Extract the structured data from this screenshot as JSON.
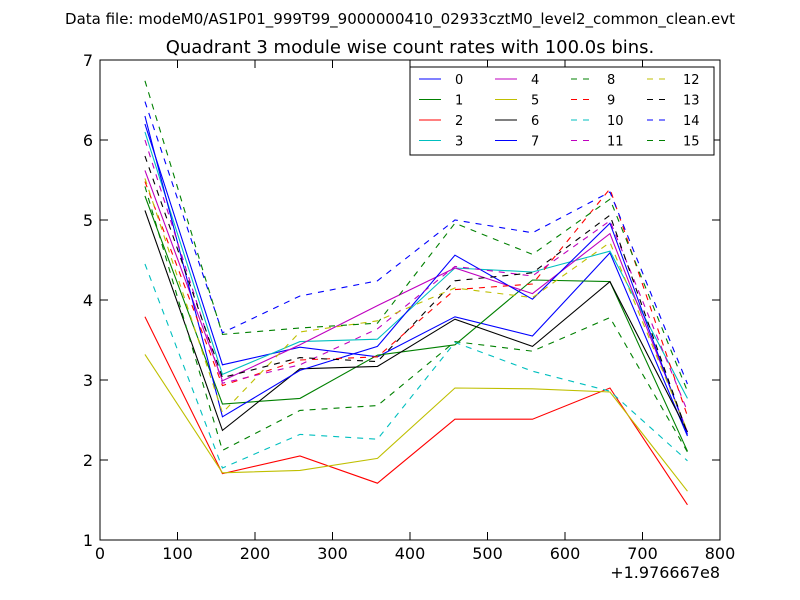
{
  "figure": {
    "suptitle": "Data file: modeM0/AS1P01_999T99_9000000410_02933cztM0_level2_common_clean.evt",
    "title": "Quadrant 3 module wise count rates with 100.0s bins.",
    "x_offset_label": "+1.976667e8"
  },
  "chart_data": {
    "type": "line",
    "title": "Quadrant 3 module wise count rates with 100.0s bins.",
    "xlabel": "",
    "ylabel": "",
    "xlim": [
      0,
      800
    ],
    "ylim": [
      1,
      7
    ],
    "x_ticks": [
      0,
      100,
      200,
      300,
      400,
      500,
      600,
      700,
      800
    ],
    "x_tick_labels": [
      "0",
      "100",
      "200",
      "300",
      "400",
      "500",
      "600",
      "700",
      "800"
    ],
    "y_ticks": [
      1,
      2,
      3,
      4,
      5,
      6,
      7
    ],
    "y_tick_labels": [
      "1",
      "2",
      "3",
      "4",
      "5",
      "6",
      "7"
    ],
    "x_offset": "+1.976667e8",
    "grid": false,
    "legend_position": "top-right",
    "legend_columns": 4,
    "x": [
      58,
      158,
      258,
      358,
      458,
      558,
      658,
      758
    ],
    "series": [
      {
        "name": "0",
        "color": "#0000ff",
        "style": "solid",
        "values": [
          6.2,
          3.19,
          3.41,
          3.29,
          3.79,
          3.55,
          4.59,
          2.3
        ]
      },
      {
        "name": "1",
        "color": "#008000",
        "style": "solid",
        "values": [
          5.3,
          2.7,
          2.77,
          3.31,
          3.44,
          4.25,
          4.23,
          2.11
        ]
      },
      {
        "name": "2",
        "color": "#ff0000",
        "style": "solid",
        "values": [
          3.79,
          1.83,
          2.05,
          1.71,
          2.51,
          2.51,
          2.9,
          1.44
        ]
      },
      {
        "name": "3",
        "color": "#00bfbf",
        "style": "solid",
        "values": [
          6.1,
          3.07,
          3.48,
          3.51,
          4.4,
          4.35,
          4.61,
          2.77
        ]
      },
      {
        "name": "4",
        "color": "#bf00bf",
        "style": "solid",
        "values": [
          5.62,
          2.99,
          3.44,
          3.93,
          4.4,
          4.08,
          4.83,
          2.35
        ]
      },
      {
        "name": "5",
        "color": "#bfbf00",
        "style": "solid",
        "values": [
          3.32,
          1.84,
          1.87,
          2.02,
          2.9,
          2.89,
          2.85,
          1.61
        ]
      },
      {
        "name": "6",
        "color": "#000000",
        "style": "solid",
        "values": [
          5.12,
          2.37,
          3.14,
          3.17,
          3.76,
          3.42,
          4.23,
          2.35
        ]
      },
      {
        "name": "7",
        "color": "#0000ff",
        "style": "solid",
        "values": [
          6.3,
          2.54,
          3.12,
          3.42,
          4.56,
          4.01,
          4.96,
          2.32
        ]
      },
      {
        "name": "8",
        "color": "#008000",
        "style": "dashed",
        "values": [
          5.42,
          2.12,
          2.62,
          2.68,
          3.48,
          3.36,
          3.78,
          2.1
        ]
      },
      {
        "name": "9",
        "color": "#ff0000",
        "style": "dashed",
        "values": [
          5.48,
          2.93,
          3.25,
          3.29,
          4.13,
          4.2,
          5.39,
          2.55
        ]
      },
      {
        "name": "10",
        "color": "#00bfbf",
        "style": "dashed",
        "values": [
          4.45,
          1.9,
          2.32,
          2.26,
          3.47,
          3.11,
          2.86,
          1.99
        ]
      },
      {
        "name": "11",
        "color": "#bf00bf",
        "style": "dashed",
        "values": [
          6.0,
          2.96,
          3.19,
          3.64,
          4.42,
          4.3,
          4.99,
          2.61
        ]
      },
      {
        "name": "12",
        "color": "#bfbf00",
        "style": "dashed",
        "values": [
          5.52,
          2.59,
          3.6,
          3.74,
          4.15,
          4.03,
          4.72,
          2.36
        ]
      },
      {
        "name": "13",
        "color": "#000000",
        "style": "dashed",
        "values": [
          5.8,
          3.03,
          3.28,
          3.23,
          4.24,
          4.34,
          5.06,
          2.33
        ]
      },
      {
        "name": "14",
        "color": "#0000ff",
        "style": "dashed",
        "values": [
          6.48,
          3.59,
          4.05,
          4.24,
          5.0,
          4.84,
          5.35,
          2.95
        ]
      },
      {
        "name": "15",
        "color": "#008000",
        "style": "dashed",
        "values": [
          6.74,
          3.57,
          3.65,
          3.71,
          4.96,
          4.57,
          5.26,
          2.86
        ]
      }
    ]
  }
}
